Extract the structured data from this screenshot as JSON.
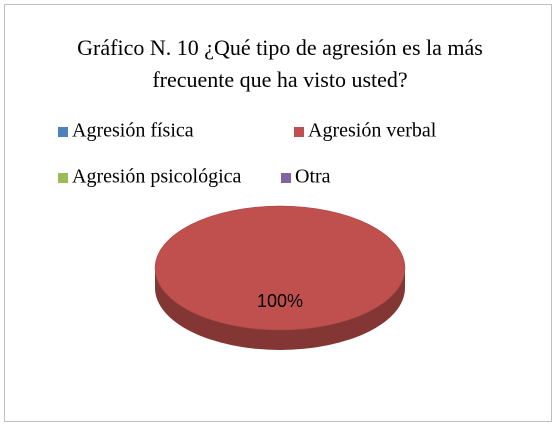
{
  "chart_data": {
    "type": "pie",
    "title": "Gráfico N. 10 ¿Qué tipo de agresión es la más frecuente que ha visto usted?",
    "categories": [
      "Agresión física",
      "Agresión verbal",
      "Agresión psicológica",
      "Otra"
    ],
    "values": [
      0,
      100,
      0,
      0
    ],
    "value_labels": [
      null,
      "100%",
      null,
      null
    ],
    "colors": [
      "#4f81bd",
      "#c0504d",
      "#9bbb59",
      "#8064a2"
    ],
    "legend": "top"
  }
}
